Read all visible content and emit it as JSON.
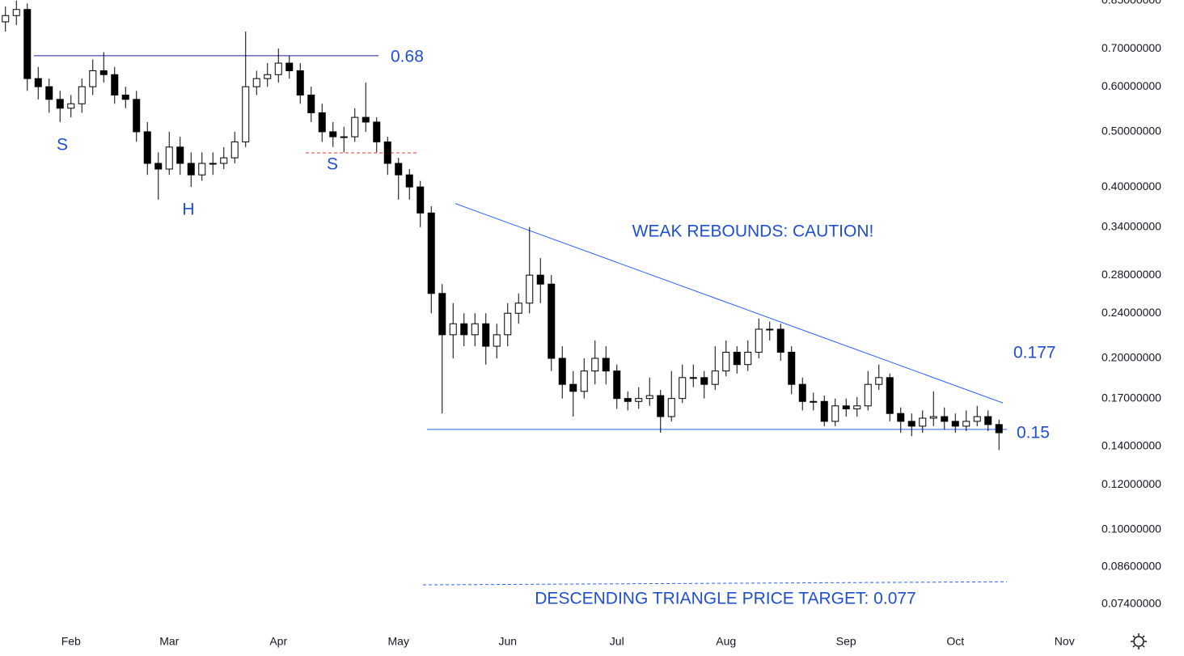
{
  "chart_data": {
    "type": "candlestick",
    "log_scale": true,
    "up_color": "#ffffff",
    "down_color": "#000000",
    "outline_color": "#000000",
    "ylim": [
      0.0664,
      0.852
    ],
    "yticks": [
      {
        "value": 0.85,
        "label": "0.85000000"
      },
      {
        "value": 0.7,
        "label": "0.70000000"
      },
      {
        "value": 0.6,
        "label": "0.60000000"
      },
      {
        "value": 0.5,
        "label": "0.50000000"
      },
      {
        "value": 0.4,
        "label": "0.40000000"
      },
      {
        "value": 0.34,
        "label": "0.34000000"
      },
      {
        "value": 0.28,
        "label": "0.28000000"
      },
      {
        "value": 0.24,
        "label": "0.24000000"
      },
      {
        "value": 0.2,
        "label": "0.20000000"
      },
      {
        "value": 0.17,
        "label": "0.17000000"
      },
      {
        "value": 0.14,
        "label": "0.14000000"
      },
      {
        "value": 0.12,
        "label": "0.12000000"
      },
      {
        "value": 0.1,
        "label": "0.10000000"
      },
      {
        "value": 0.086,
        "label": "0.08600000"
      },
      {
        "value": 0.074,
        "label": "0.07400000"
      }
    ],
    "categories": [
      null,
      null,
      null,
      null,
      null,
      null,
      "Feb",
      null,
      null,
      null,
      null,
      null,
      null,
      null,
      null,
      "Mar",
      null,
      null,
      null,
      null,
      null,
      null,
      null,
      null,
      null,
      "Apr",
      null,
      null,
      null,
      null,
      null,
      null,
      null,
      null,
      null,
      null,
      "May",
      null,
      null,
      null,
      null,
      null,
      null,
      null,
      null,
      null,
      "Jun",
      null,
      null,
      null,
      null,
      null,
      null,
      null,
      null,
      null,
      "Jul",
      null,
      null,
      null,
      null,
      null,
      null,
      null,
      null,
      null,
      "Aug",
      null,
      null,
      null,
      null,
      null,
      null,
      null,
      null,
      null,
      null,
      "Sep",
      null,
      null,
      null,
      null,
      null,
      null,
      null,
      null,
      null,
      "Oct",
      null,
      null,
      null,
      null,
      null,
      null,
      null,
      null,
      null,
      "Nov"
    ],
    "open": [
      0.78,
      0.8,
      0.82,
      0.62,
      0.6,
      0.57,
      0.55,
      0.56,
      0.6,
      0.64,
      0.63,
      0.58,
      0.57,
      0.5,
      0.44,
      0.43,
      0.47,
      0.44,
      0.42,
      0.44,
      0.44,
      0.45,
      0.48,
      0.6,
      0.62,
      0.63,
      0.66,
      0.64,
      0.58,
      0.54,
      0.5,
      0.49,
      0.49,
      0.53,
      0.52,
      0.48,
      0.44,
      0.42,
      0.4,
      0.36,
      0.26,
      0.22,
      0.23,
      0.22,
      0.23,
      0.21,
      0.22,
      0.24,
      0.25,
      0.28,
      0.27,
      0.2,
      0.18,
      0.175,
      0.19,
      0.2,
      0.19,
      0.17,
      0.168,
      0.17,
      0.172,
      0.158,
      0.17,
      0.185,
      0.185,
      0.18,
      0.19,
      0.205,
      0.195,
      0.205,
      0.225,
      0.225,
      0.205,
      0.18,
      0.168,
      0.168,
      0.155,
      0.165,
      0.163,
      0.165,
      0.18,
      0.185,
      0.16,
      0.155,
      0.152,
      0.157,
      0.158,
      0.155,
      0.152,
      0.155,
      0.158,
      0.153,
      null,
      null,
      null,
      null,
      null,
      null
    ],
    "high": [
      0.83,
      0.85,
      0.84,
      0.65,
      0.62,
      0.59,
      0.58,
      0.62,
      0.67,
      0.69,
      0.65,
      0.6,
      0.59,
      0.52,
      0.46,
      0.5,
      0.49,
      0.46,
      0.46,
      0.46,
      0.47,
      0.5,
      0.75,
      0.64,
      0.66,
      0.7,
      0.68,
      0.66,
      0.6,
      0.56,
      0.52,
      0.51,
      0.55,
      0.61,
      0.53,
      0.49,
      0.45,
      0.43,
      0.41,
      0.37,
      0.27,
      0.25,
      0.24,
      0.24,
      0.24,
      0.23,
      0.25,
      0.26,
      0.34,
      0.3,
      0.28,
      0.21,
      0.19,
      0.2,
      0.215,
      0.21,
      0.195,
      0.175,
      0.178,
      0.185,
      0.176,
      0.19,
      0.195,
      0.195,
      0.19,
      0.21,
      0.215,
      0.21,
      0.215,
      0.235,
      0.232,
      0.23,
      0.21,
      0.185,
      0.174,
      0.172,
      0.17,
      0.17,
      0.171,
      0.19,
      0.195,
      0.188,
      0.164,
      0.16,
      0.162,
      0.175,
      0.164,
      0.16,
      0.162,
      0.165,
      0.162,
      0.156,
      null,
      null,
      null,
      null,
      null,
      null
    ],
    "low": [
      0.75,
      0.77,
      0.59,
      0.57,
      0.54,
      0.52,
      0.53,
      0.54,
      0.58,
      0.61,
      0.56,
      0.55,
      0.48,
      0.42,
      0.38,
      0.42,
      0.42,
      0.4,
      0.41,
      0.42,
      0.43,
      0.44,
      0.47,
      0.58,
      0.6,
      0.61,
      0.62,
      0.56,
      0.52,
      0.48,
      0.47,
      0.46,
      0.48,
      0.5,
      0.46,
      0.42,
      0.38,
      0.38,
      0.34,
      0.24,
      0.16,
      0.2,
      0.21,
      0.21,
      0.195,
      0.2,
      0.21,
      0.23,
      0.24,
      0.25,
      0.19,
      0.17,
      0.158,
      0.17,
      0.18,
      0.18,
      0.163,
      0.162,
      0.163,
      0.165,
      0.148,
      0.155,
      0.167,
      0.178,
      0.17,
      0.176,
      0.186,
      0.188,
      0.19,
      0.2,
      0.215,
      0.198,
      0.173,
      0.162,
      0.162,
      0.152,
      0.152,
      0.158,
      0.158,
      0.162,
      0.176,
      0.155,
      0.148,
      0.146,
      0.148,
      0.152,
      0.15,
      0.148,
      0.149,
      0.152,
      0.149,
      0.138,
      null,
      null,
      null,
      null,
      null,
      null
    ],
    "close": [
      0.8,
      0.82,
      0.62,
      0.6,
      0.57,
      0.55,
      0.56,
      0.6,
      0.64,
      0.63,
      0.58,
      0.57,
      0.5,
      0.44,
      0.43,
      0.47,
      0.44,
      0.42,
      0.44,
      0.44,
      0.45,
      0.48,
      0.6,
      0.62,
      0.63,
      0.66,
      0.64,
      0.58,
      0.54,
      0.5,
      0.49,
      0.49,
      0.53,
      0.52,
      0.48,
      0.44,
      0.42,
      0.4,
      0.36,
      0.26,
      0.22,
      0.23,
      0.22,
      0.23,
      0.21,
      0.22,
      0.24,
      0.25,
      0.28,
      0.27,
      0.2,
      0.18,
      0.175,
      0.19,
      0.2,
      0.19,
      0.17,
      0.168,
      0.17,
      0.172,
      0.158,
      0.17,
      0.185,
      0.185,
      0.18,
      0.19,
      0.205,
      0.195,
      0.205,
      0.225,
      0.225,
      0.205,
      0.18,
      0.168,
      0.168,
      0.155,
      0.165,
      0.163,
      0.165,
      0.18,
      0.185,
      0.16,
      0.155,
      0.152,
      0.157,
      0.158,
      0.155,
      0.152,
      0.155,
      0.158,
      0.153,
      0.148,
      null,
      null,
      null,
      null,
      null,
      null
    ],
    "lines": [
      {
        "values": [
          0.68,
          0.68
        ],
        "color": "#1a1aa8",
        "dashed": false
      },
      {
        "values": [
          0.459,
          0.459
        ],
        "color": "#e53935",
        "dashed": true
      },
      {
        "values": [
          0.15,
          0.15
        ],
        "color": "#2962ff",
        "dashed": false
      },
      {
        "values": [
          0.374,
          0.167
        ],
        "color": "#2962ff",
        "dashed": false
      },
      {
        "values": [
          0.08,
          0.081
        ],
        "color": "#2962ff",
        "dashed": true
      }
    ],
    "annotations": [
      "0.68",
      "S",
      "H",
      "S",
      "WEAK REBOUNDS: CAUTION!",
      "0.177",
      "0.15",
      "DESCENDING TRIANGLE PRICE TARGET: 0.077"
    ]
  }
}
